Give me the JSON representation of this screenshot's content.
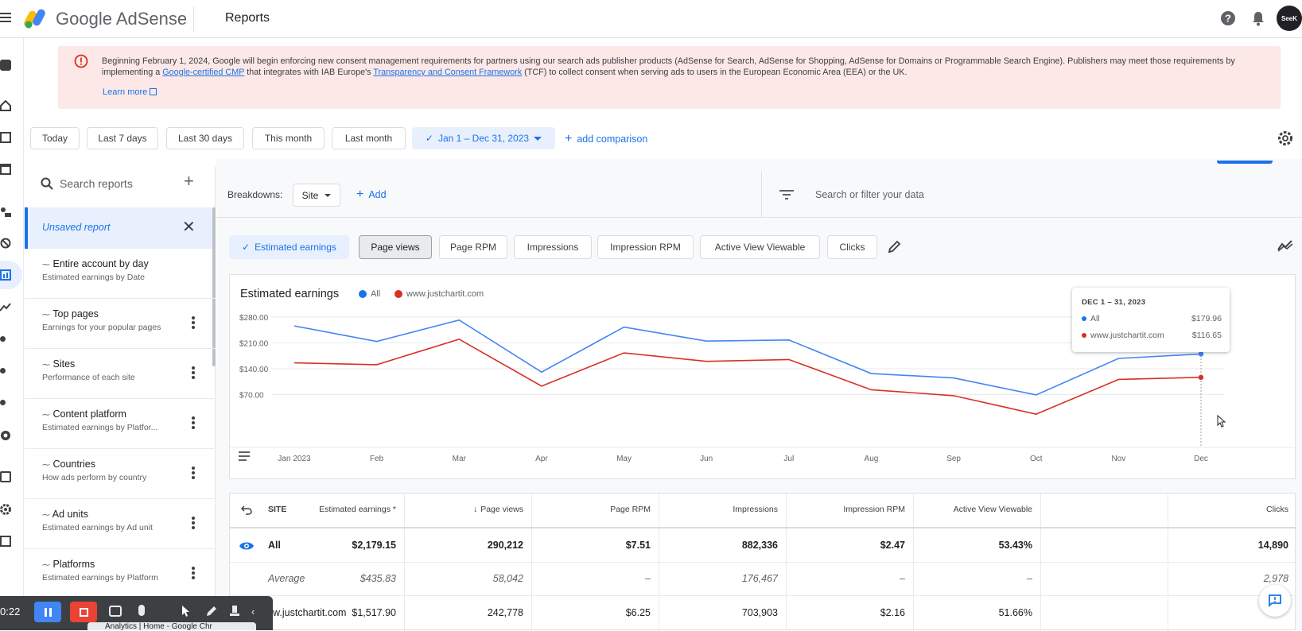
{
  "header": {
    "brand": "Google AdSense",
    "page_title": "Reports",
    "avatar_text": "SeeK"
  },
  "banner": {
    "text_before_link1": "Beginning February 1, 2024, Google will begin enforcing new consent management requirements for partners using our search ads publisher products (AdSense for Search, AdSense for Shopping, AdSense for Domains or Programmable Search Engine). Publishers may meet those requirements by implementing a ",
    "link1": "Google-certified CMP",
    "text_between": " that integrates with IAB Europe's ",
    "link2": "Transparency and Consent Framework",
    "text_after": " (TCF) to collect consent when serving ads to users in the European Economic Area (EEA) or the UK.",
    "learn_more": "Learn more"
  },
  "date_chips": [
    "Today",
    "Last 7 days",
    "Last 30 days",
    "This month",
    "Last month"
  ],
  "date_range": "Jan 1 – Dec 31, 2023",
  "add_comparison": "add comparison",
  "search_reports_placeholder": "Search reports",
  "unsaved_report": "Unsaved report",
  "reports": [
    {
      "title": "Entire account by day",
      "subtitle": "Estimated earnings by Date"
    },
    {
      "title": "Top pages",
      "subtitle": "Earnings for your popular pages"
    },
    {
      "title": "Sites",
      "subtitle": "Performance of each site"
    },
    {
      "title": "Content platform",
      "subtitle": "Estimated earnings by Platfor..."
    },
    {
      "title": "Countries",
      "subtitle": "How ads perform by country"
    },
    {
      "title": "Ad units",
      "subtitle": "Estimated earnings by Ad unit"
    },
    {
      "title": "Platforms",
      "subtitle": "Estimated earnings by Platform"
    }
  ],
  "breakdowns": {
    "label": "Breakdowns:",
    "value": "Site",
    "add": "Add",
    "filter_placeholder": "Search or filter your data"
  },
  "metrics": [
    "Estimated earnings",
    "Page views",
    "Page RPM",
    "Impressions",
    "Impression RPM",
    "Active View Viewable",
    "Clicks"
  ],
  "chart_data": {
    "type": "line",
    "title": "Estimated earnings",
    "x": [
      "Jan 2023",
      "Feb",
      "Mar",
      "Apr",
      "May",
      "Jun",
      "Jul",
      "Aug",
      "Sep",
      "Oct",
      "Nov",
      "Dec"
    ],
    "ylim": [
      0,
      280
    ],
    "yticks": [
      "$280.00",
      "$210.00",
      "$140.00",
      "$70.00"
    ],
    "series": [
      {
        "name": "All",
        "color": "#4285f4",
        "values": [
          256,
          214,
          272,
          131,
          253,
          215,
          218,
          127,
          115,
          69,
          168,
          179.96
        ]
      },
      {
        "name": "www.justchartit.com",
        "color": "#d93025",
        "values": [
          156,
          151,
          220,
          93,
          183,
          160,
          165,
          83,
          67,
          17,
          111,
          116.65
        ]
      }
    ],
    "tooltip": {
      "title": "DEC 1 – 31, 2023",
      "rows": [
        {
          "label": "All",
          "value": "$179.96",
          "color": "#1a73e8"
        },
        {
          "label": "www.justchartit.com",
          "value": "$116.65",
          "color": "#d93025"
        }
      ]
    }
  },
  "table": {
    "headers": [
      "SITE",
      "Estimated earnings *",
      "Page views",
      "Page RPM",
      "Impressions",
      "Impression RPM",
      "Active View Viewable",
      "Clicks"
    ],
    "rows": [
      {
        "name": "All",
        "cells": [
          "$2,179.15",
          "290,212",
          "$7.51",
          "882,336",
          "$2.47",
          "53.43%",
          "14,890"
        ]
      },
      {
        "name": "Average",
        "cells": [
          "$435.83",
          "58,042",
          "–",
          "176,467",
          "–",
          "–",
          "2,978"
        ]
      },
      {
        "name": "www.justchartit.com",
        "cells": [
          "$1,517.90",
          "242,778",
          "$6.25",
          "703,903",
          "$2.16",
          "51.66%",
          ""
        ]
      }
    ]
  },
  "recorder": {
    "time": "0:22",
    "tab_title": "Analytics | Home - Google Chr"
  }
}
